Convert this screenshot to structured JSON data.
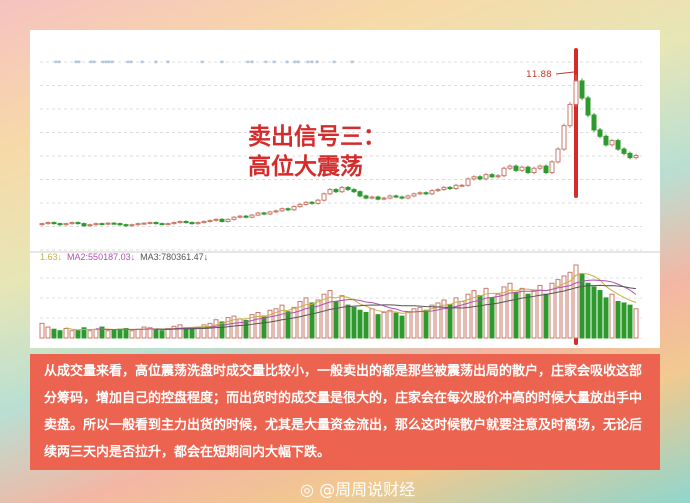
{
  "chart_data": {
    "type": "candlestick",
    "annotations": [
      "11.88"
    ],
    "title_overlay": [
      "卖出信号三：",
      "高位大震荡"
    ],
    "peak_label": "11.88",
    "closes": [
      4.9,
      4.95,
      4.9,
      4.85,
      4.9,
      4.95,
      4.9,
      4.8,
      4.85,
      4.9,
      4.88,
      4.92,
      4.9,
      4.85,
      4.8,
      4.85,
      4.9,
      4.92,
      4.95,
      4.9,
      4.88,
      4.9,
      4.95,
      5.0,
      4.95,
      4.9,
      4.95,
      5.0,
      5.05,
      5.1,
      5.0,
      5.1,
      5.2,
      5.25,
      5.2,
      5.3,
      5.4,
      5.35,
      5.45,
      5.5,
      5.6,
      5.55,
      5.7,
      5.8,
      5.9,
      5.85,
      6.0,
      6.3,
      6.5,
      6.4,
      6.6,
      6.5,
      6.4,
      6.2,
      6.1,
      6.15,
      6.05,
      6.1,
      6.2,
      6.15,
      6.1,
      6.2,
      6.3,
      6.35,
      6.3,
      6.45,
      6.5,
      6.6,
      6.55,
      6.7,
      6.7,
      7.0,
      7.1,
      7.0,
      7.2,
      7.1,
      7.15,
      7.5,
      7.6,
      7.4,
      7.55,
      7.3,
      7.5,
      7.6,
      7.3,
      7.8,
      8.4,
      9.5,
      10.5,
      11.6,
      10.8,
      10.0,
      9.3,
      9.0,
      8.6,
      8.8,
      8.4,
      8.2,
      8.0,
      8.1
    ],
    "volumes": [
      2,
      1.5,
      1.2,
      1,
      1.3,
      1,
      1.1,
      1.4,
      1,
      1.2,
      1.5,
      1,
      1.1,
      1.2,
      1.3,
      1,
      1.2,
      1.5,
      1.4,
      1.1,
      1,
      1.3,
      1.6,
      1.8,
      1.4,
      1.2,
      1.5,
      1.8,
      2,
      2.5,
      2.2,
      2.8,
      3,
      2.6,
      2.4,
      3.2,
      3.5,
      3,
      3.8,
      4,
      4.5,
      3.6,
      4.2,
      5,
      5.5,
      4.8,
      5.2,
      6,
      6.5,
      5,
      5.8,
      4.5,
      4.2,
      3.8,
      3.5,
      4,
      3.2,
      3.5,
      3.8,
      3.4,
      3,
      3.6,
      4,
      4.2,
      3.8,
      4.5,
      4.8,
      5.2,
      4.6,
      5.5,
      5,
      6,
      6.5,
      5.8,
      6.8,
      5.5,
      6,
      7,
      7.5,
      6.2,
      6.8,
      6,
      6.5,
      7.2,
      6,
      7.5,
      8,
      8.5,
      9,
      10,
      8.8,
      7.5,
      7,
      6.5,
      5.5,
      6,
      5,
      4.8,
      4.5,
      4
    ],
    "volume_unit": "×100000",
    "ma_labels": [
      "1.63↓",
      "MA2:550187.03↓",
      "MA3:780361.47↓"
    ],
    "colors": {
      "up": "#c97a6a",
      "down": "#2e9a2e",
      "signal": "#d42b2b",
      "ma1": "#c8b040",
      "ma2": "#b050b0",
      "ma3": "#555555"
    }
  },
  "text_box": "从成交量来看，高位震荡洗盘时成交量比较小，一般卖出的都是那些被震荡出局的散户，庄家会吸收这部分筹码，增加自己的控盘程度；而出货时的成交量是很大的，庄家会在每次股价冲高的时候大量放出手中卖盘。所以一般看到主力出货的时候，尤其是大量资金流出，那么这时候散户就要注意及时离场，无论后续两三天内是否拉升，都会在短期间内大幅下跌。",
  "watermark": "@周周说财经"
}
